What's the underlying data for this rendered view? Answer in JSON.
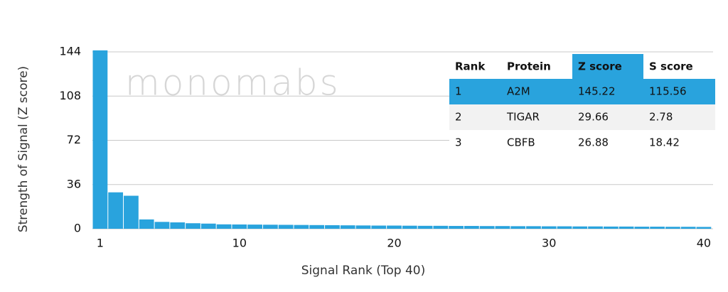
{
  "chart_data": {
    "type": "bar",
    "x_label": "Signal Rank (Top 40)",
    "y_label": "Strength of Signal (Z score)",
    "x": [
      1,
      2,
      3,
      4,
      5,
      6,
      7,
      8,
      9,
      10,
      11,
      12,
      13,
      14,
      15,
      16,
      17,
      18,
      19,
      20,
      21,
      22,
      23,
      24,
      25,
      26,
      27,
      28,
      29,
      30,
      31,
      32,
      33,
      34,
      35,
      36,
      37,
      38,
      39,
      40
    ],
    "values": [
      145.22,
      29.66,
      26.88,
      7.6,
      5.6,
      5.2,
      4.5,
      4.2,
      3.6,
      3.5,
      3.4,
      3.3,
      3.2,
      3.1,
      3.0,
      2.9,
      2.8,
      2.7,
      2.6,
      2.6,
      2.5,
      2.4,
      2.4,
      2.3,
      2.3,
      2.2,
      2.2,
      2.1,
      2.1,
      2.0,
      2.0,
      1.9,
      1.9,
      1.8,
      1.8,
      1.7,
      1.7,
      1.6,
      1.6,
      1.5
    ],
    "color": "#29a3dd",
    "xlim": [
      0.5,
      40.6
    ],
    "xticks": [
      1,
      10,
      20,
      30,
      40
    ],
    "ylim": [
      0,
      144
    ],
    "yticks": [
      0,
      36,
      72,
      108,
      144
    ],
    "grid": true
  },
  "watermark": "monomabs",
  "table": {
    "header": [
      "Rank",
      "Protein",
      "Z score",
      "S score"
    ],
    "rows": [
      [
        "1",
        "A2M",
        "145.22",
        "115.56"
      ],
      [
        "2",
        "TIGAR",
        "29.66",
        "2.78"
      ],
      [
        "3",
        "CBFB",
        "26.88",
        "18.42"
      ]
    ]
  }
}
